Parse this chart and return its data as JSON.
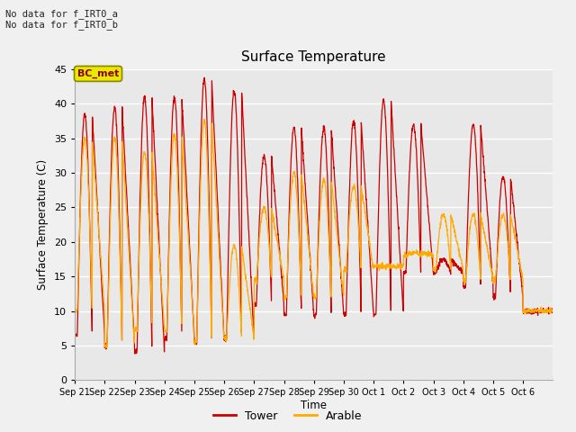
{
  "title": "Surface Temperature",
  "xlabel": "Time",
  "ylabel": "Surface Temperature (C)",
  "ylim": [
    0,
    45
  ],
  "yticks": [
    0,
    5,
    10,
    15,
    20,
    25,
    30,
    35,
    40,
    45
  ],
  "annotation_text": "No data for f_IRT0_a\nNo data for f_IRT0_b",
  "bc_met_label": "BC_met",
  "bc_met_bg": "#e8e800",
  "bc_met_border": "#888800",
  "bc_met_text_color": "#8b0000",
  "tower_color": "#cc0000",
  "arable_color": "#ffaa00",
  "legend_labels": [
    "Tower",
    "Arable"
  ],
  "fig_bg_color": "#f0f0f0",
  "plot_bg_color": "#e8e8e8",
  "grid_color": "#ffffff",
  "x_tick_labels": [
    "Sep 21",
    "Sep 22",
    "Sep 23",
    "Sep 24",
    "Sep 25",
    "Sep 26",
    "Sep 27",
    "Sep 28",
    "Sep 29",
    "Sep 30",
    "Oct 1",
    "Oct 2",
    "Oct 3",
    "Oct 4",
    "Oct 5",
    "Oct 6"
  ],
  "n_days": 16,
  "tower_min": [
    6.5,
    5.0,
    4.0,
    6.0,
    5.5,
    6.0,
    11.0,
    9.5,
    9.5,
    9.5,
    9.5,
    15.5,
    15.5,
    13.5,
    12.0,
    10.0
  ],
  "tower_max": [
    38.5,
    39.5,
    41.0,
    41.0,
    43.5,
    42.0,
    32.5,
    36.5,
    36.5,
    37.5,
    40.5,
    37.0,
    17.5,
    37.0,
    29.5,
    10.0
  ],
  "arable_min": [
    10.0,
    5.0,
    7.5,
    7.0,
    5.5,
    6.0,
    14.5,
    12.0,
    12.0,
    16.0,
    16.5,
    18.0,
    16.0,
    14.5,
    14.5,
    10.0
  ],
  "arable_max": [
    35.0,
    35.0,
    33.0,
    35.5,
    37.5,
    19.5,
    25.0,
    30.0,
    29.0,
    28.0,
    16.5,
    18.5,
    24.0,
    24.0,
    24.0,
    10.0
  ],
  "pts_per_day": 144
}
